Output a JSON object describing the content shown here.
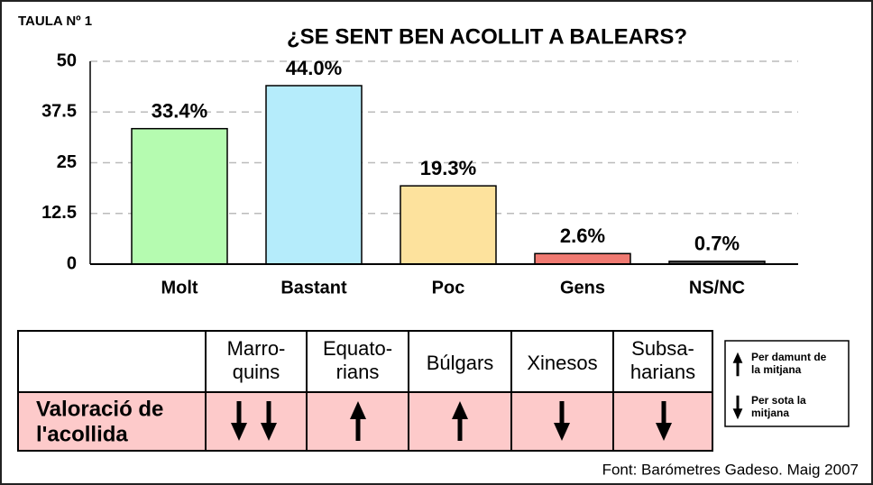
{
  "label": "TAULA Nº 1",
  "chart_data": {
    "type": "bar",
    "title": "¿SE SENT BEN ACOLLIT A BALEARS?",
    "categories": [
      "Molt",
      "Bastant",
      "Poc",
      "Gens",
      "NS/NC"
    ],
    "values": [
      33.4,
      44.0,
      19.3,
      2.6,
      0.7
    ],
    "value_labels": [
      "33.4%",
      "44.0%",
      "19.3%",
      "2.6%",
      "0.7%"
    ],
    "colors": [
      "#b5fbb0",
      "#b5ecfb",
      "#fde29d",
      "#f07a72",
      "#555555"
    ],
    "ylim": [
      0,
      50
    ],
    "yticks": [
      0,
      12.5,
      25,
      37.5,
      50
    ],
    "grid": true
  },
  "table": {
    "columns": [
      [
        "Marro-",
        "quins"
      ],
      [
        "Equato-",
        "rians"
      ],
      [
        "Búlgars"
      ],
      [
        "Xinesos"
      ],
      [
        "Subsa-",
        "harians"
      ]
    ],
    "row_label": [
      "Valoració de",
      "l'acollida"
    ]
  },
  "legend": {
    "up": [
      "Per damunt de",
      "la mitjana"
    ],
    "down": [
      "Per sota la",
      "mitjana"
    ]
  },
  "source": "Font: Barómetres Gadeso. Maig 2007"
}
